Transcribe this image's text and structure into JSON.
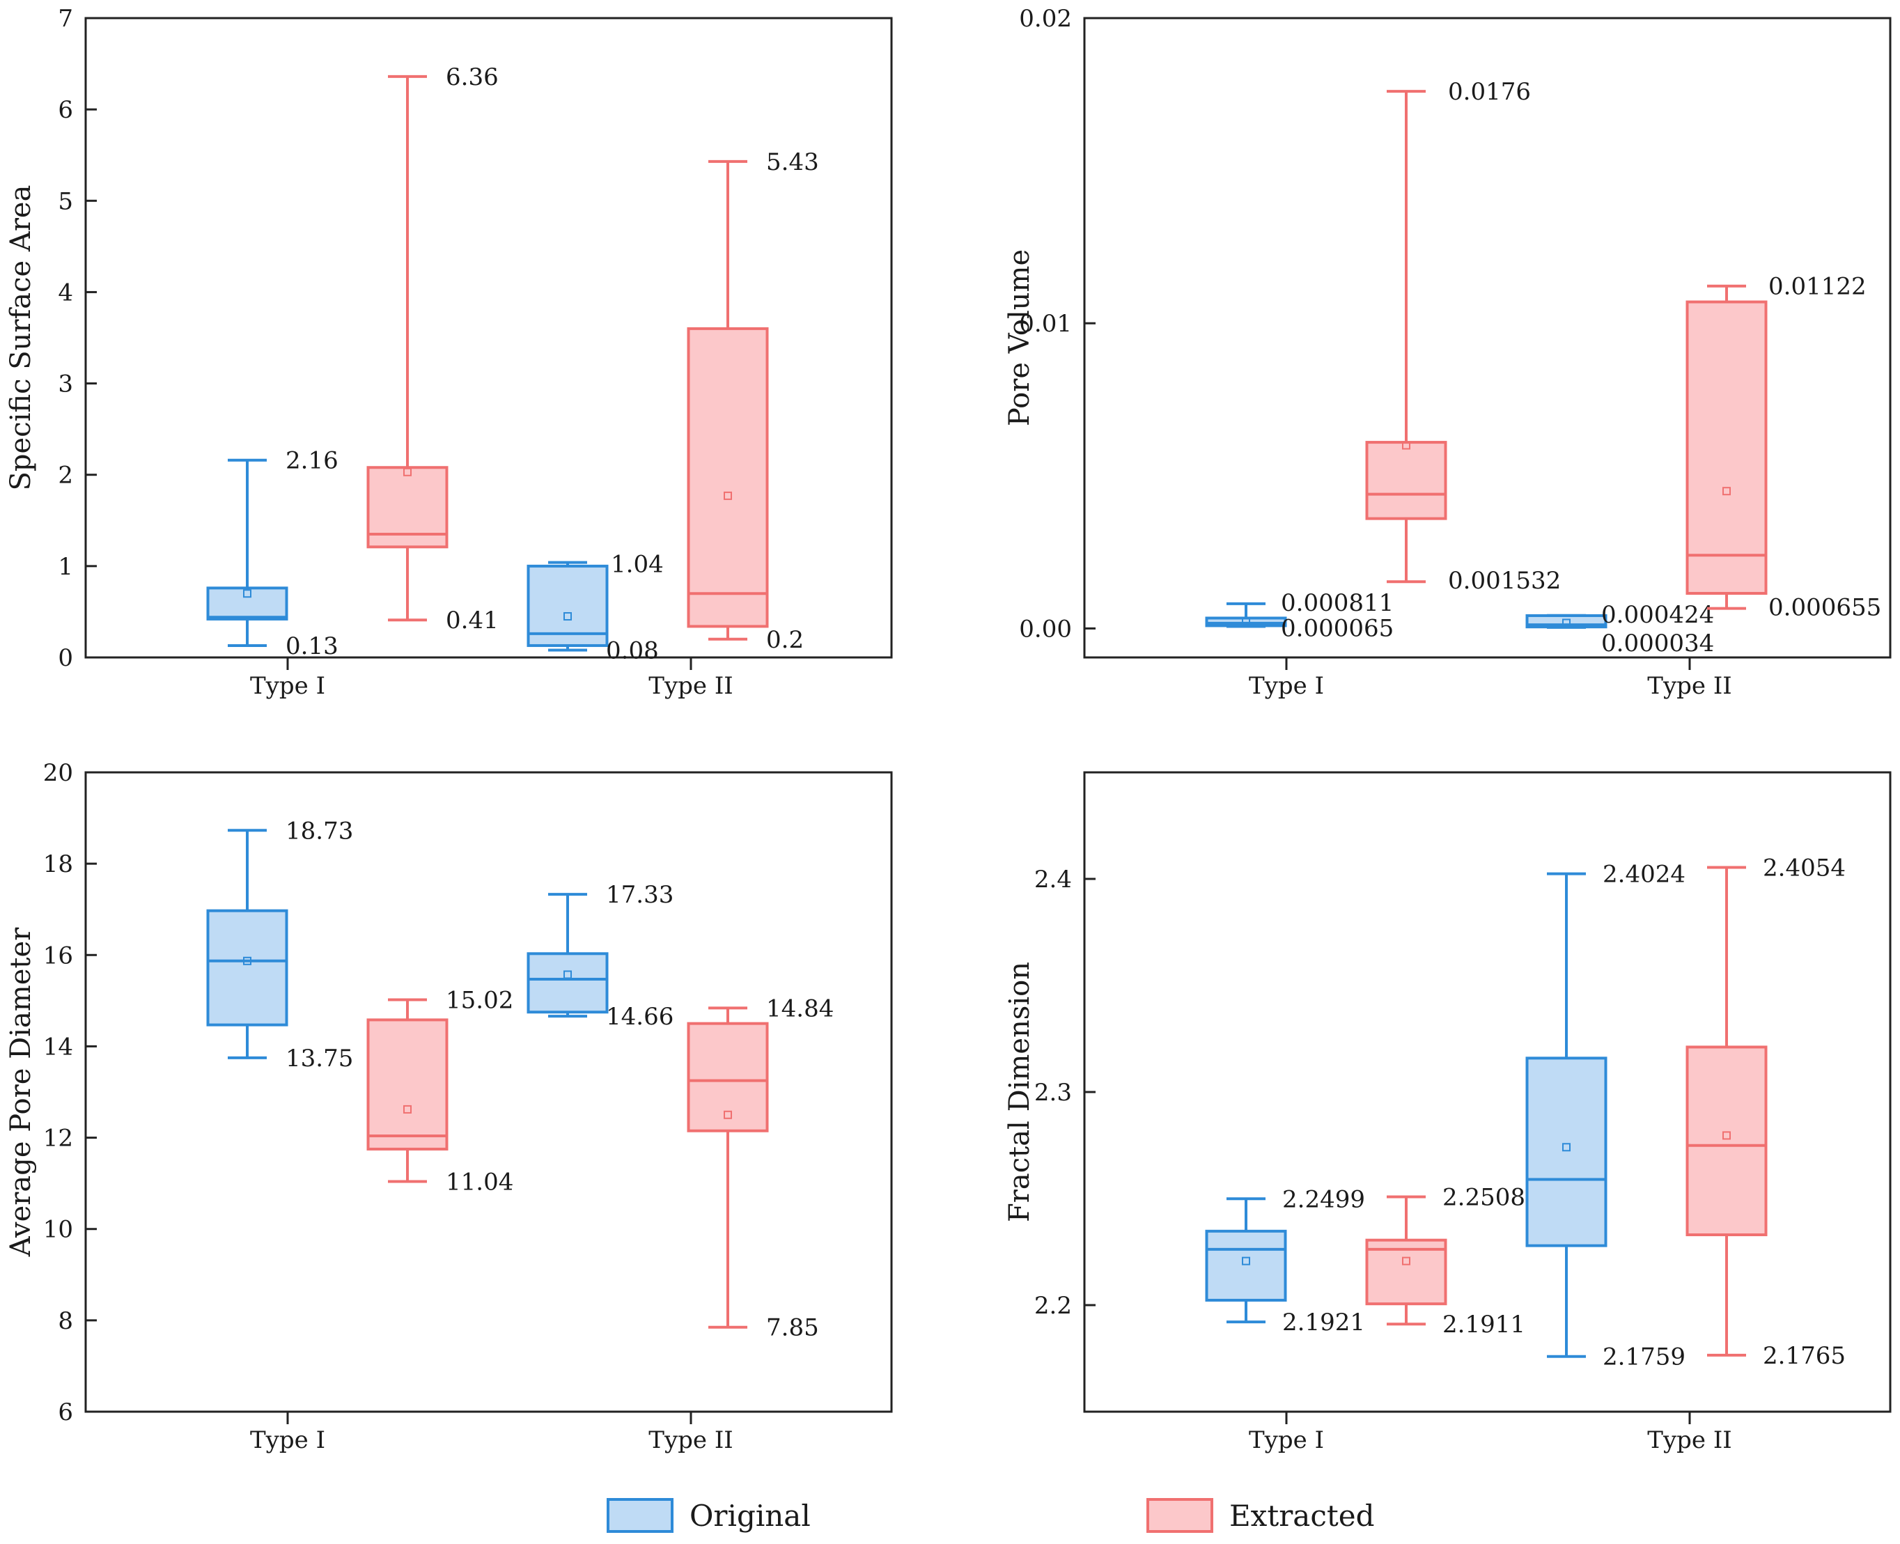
{
  "legend": {
    "original_label": "Original",
    "extracted_label": "Extracted"
  },
  "colors": {
    "original_stroke": "#2E8BD8",
    "original_fill": "#BFDBF5",
    "extracted_stroke": "#F07070",
    "extracted_fill": "#FCC8CA"
  },
  "chart_data": [
    {
      "id": "ssa",
      "type": "box",
      "ylabel": "Specific Surface Area",
      "ylim": [
        0,
        7
      ],
      "yticks": [
        0,
        1,
        2,
        3,
        4,
        5,
        6,
        7
      ],
      "ytick_labels": [
        "0",
        "1",
        "2",
        "3",
        "4",
        "5",
        "6",
        "7"
      ],
      "categories": [
        "Type I",
        "Type II"
      ],
      "series": [
        {
          "name": "Original",
          "boxes": [
            {
              "min": 0.13,
              "q1": 0.42,
              "median": 0.44,
              "q3": 0.76,
              "max": 2.16,
              "mean": 0.7,
              "label_max": "2.16",
              "label_min": "0.13"
            },
            {
              "min": 0.08,
              "q1": 0.13,
              "median": 0.26,
              "q3": 1.0,
              "max": 1.04,
              "mean": 0.45,
              "label_max": "1.04",
              "label_min": "0.08"
            }
          ]
        },
        {
          "name": "Extracted",
          "boxes": [
            {
              "min": 0.41,
              "q1": 1.21,
              "median": 1.35,
              "q3": 2.08,
              "max": 6.36,
              "mean": 2.03,
              "label_max": "6.36",
              "label_min": "0.41"
            },
            {
              "min": 0.2,
              "q1": 0.34,
              "median": 0.7,
              "q3": 3.6,
              "max": 5.43,
              "mean": 1.77,
              "label_max": "5.43",
              "label_min": "0.2"
            }
          ]
        }
      ]
    },
    {
      "id": "pv",
      "type": "box",
      "ylabel": "Pore Volume",
      "ylim": [
        -0.00095,
        0.02
      ],
      "yticks": [
        0,
        0.01,
        0.02
      ],
      "ytick_labels": [
        "0.00",
        "0.01",
        "0.02"
      ],
      "categories": [
        "Type I",
        "Type II"
      ],
      "series": [
        {
          "name": "Original",
          "boxes": [
            {
              "min": 6.5e-05,
              "q1": 9e-05,
              "median": 0.00017,
              "q3": 0.00034,
              "max": 0.000811,
              "mean": 0.00022,
              "label_max": "0.000811",
              "label_min": "0.000065"
            },
            {
              "min": 3.4e-05,
              "q1": 5e-05,
              "median": 0.00012,
              "q3": 0.00042,
              "max": 0.000424,
              "mean": 0.00018,
              "label_max": "0.000424",
              "label_min": "0.000034"
            }
          ]
        },
        {
          "name": "Extracted",
          "boxes": [
            {
              "min": 0.001532,
              "q1": 0.0036,
              "median": 0.0044,
              "q3": 0.0061,
              "max": 0.0176,
              "mean": 0.006,
              "label_max": "0.0176",
              "label_min": "0.001532"
            },
            {
              "min": 0.000655,
              "q1": 0.00115,
              "median": 0.0024,
              "q3": 0.0107,
              "max": 0.01122,
              "mean": 0.0045,
              "label_max": "0.01122",
              "label_min": "0.000655"
            }
          ]
        }
      ]
    },
    {
      "id": "apd",
      "type": "box",
      "ylabel": "Average Pore Diameter",
      "ylim": [
        6,
        20
      ],
      "yticks": [
        6,
        8,
        10,
        12,
        14,
        16,
        18,
        20
      ],
      "ytick_labels": [
        "6",
        "8",
        "10",
        "12",
        "14",
        "16",
        "18",
        "20"
      ],
      "categories": [
        "Type I",
        "Type II"
      ],
      "series": [
        {
          "name": "Original",
          "boxes": [
            {
              "min": 13.75,
              "q1": 14.47,
              "median": 15.87,
              "q3": 16.97,
              "max": 18.73,
              "mean": 15.87,
              "label_max": "18.73",
              "label_min": "13.75"
            },
            {
              "min": 14.66,
              "q1": 14.75,
              "median": 15.47,
              "q3": 16.03,
              "max": 17.33,
              "mean": 15.57,
              "label_max": "17.33",
              "label_min": "14.66"
            }
          ]
        },
        {
          "name": "Extracted",
          "boxes": [
            {
              "min": 11.04,
              "q1": 11.75,
              "median": 12.04,
              "q3": 14.58,
              "max": 15.02,
              "mean": 12.62,
              "label_max": "15.02",
              "label_min": "11.04"
            },
            {
              "min": 7.85,
              "q1": 12.15,
              "median": 13.25,
              "q3": 14.5,
              "max": 14.84,
              "mean": 12.5,
              "label_max": "14.84",
              "label_min": "7.85"
            }
          ]
        }
      ]
    },
    {
      "id": "fd",
      "type": "box",
      "ylabel": "Fractal Dimension",
      "ylim": [
        2.15,
        2.45
      ],
      "yticks": [
        2.2,
        2.3,
        2.4
      ],
      "ytick_labels": [
        "2.2",
        "2.3",
        "2.4"
      ],
      "categories": [
        "Type I",
        "Type II"
      ],
      "series": [
        {
          "name": "Original",
          "boxes": [
            {
              "min": 2.1921,
              "q1": 2.2023,
              "median": 2.2262,
              "q3": 2.2347,
              "max": 2.2499,
              "mean": 2.2207,
              "label_max": "2.2499",
              "label_min": "2.1921"
            },
            {
              "min": 2.1759,
              "q1": 2.2279,
              "median": 2.259,
              "q3": 2.3159,
              "max": 2.4024,
              "mean": 2.2741,
              "label_max": "2.4024",
              "label_min": "2.1759"
            }
          ]
        },
        {
          "name": "Extracted",
          "boxes": [
            {
              "min": 2.1911,
              "q1": 2.2006,
              "median": 2.2262,
              "q3": 2.2305,
              "max": 2.2508,
              "mean": 2.2207,
              "label_max": "2.2508",
              "label_min": "2.1911"
            },
            {
              "min": 2.1765,
              "q1": 2.233,
              "median": 2.2749,
              "q3": 2.3211,
              "max": 2.4054,
              "mean": 2.2796,
              "label_max": "2.4054",
              "label_min": "2.1765"
            }
          ]
        }
      ]
    }
  ]
}
